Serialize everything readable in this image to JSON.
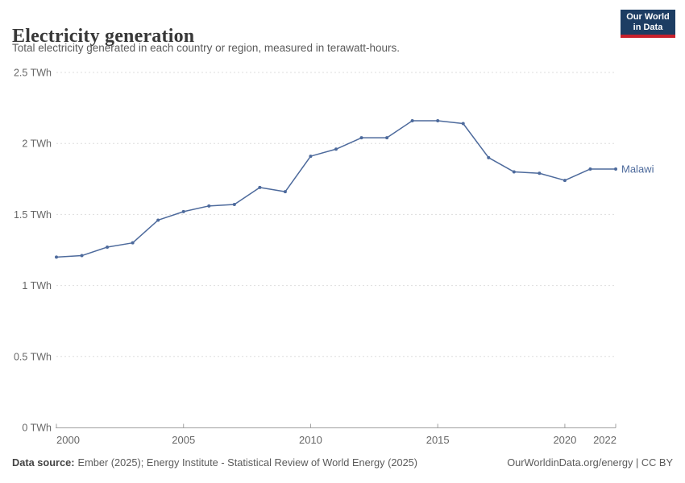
{
  "header": {
    "title": "Electricity generation",
    "subtitle": "Total electricity generated in each country or region, measured in terawatt-hours.",
    "logo": {
      "line1": "Our World",
      "line2": "in Data"
    }
  },
  "chart_data": {
    "type": "line",
    "title": "Electricity generation",
    "unit": "TWh",
    "x": [
      2000,
      2001,
      2002,
      2003,
      2004,
      2005,
      2006,
      2007,
      2008,
      2009,
      2010,
      2011,
      2012,
      2013,
      2014,
      2015,
      2016,
      2017,
      2018,
      2019,
      2020,
      2021,
      2022
    ],
    "series": [
      {
        "name": "Malawi",
        "values": [
          1.2,
          1.21,
          1.27,
          1.3,
          1.46,
          1.52,
          1.56,
          1.57,
          1.69,
          1.66,
          1.91,
          1.96,
          2.04,
          2.04,
          2.16,
          2.16,
          2.14,
          1.9,
          1.8,
          1.79,
          1.74,
          1.82,
          1.82
        ]
      }
    ],
    "ylim": [
      0,
      2.5
    ],
    "yticks": [
      0,
      0.5,
      1,
      1.5,
      2,
      2.5
    ],
    "ytick_labels": [
      "0 TWh",
      "0.5 TWh",
      "1 TWh",
      "1.5 TWh",
      "2 TWh",
      "2.5 TWh"
    ],
    "xticks": [
      2000,
      2005,
      2010,
      2015,
      2020,
      2022
    ],
    "grid": "horizontal-dashed",
    "legend_position": "end-of-line-label"
  },
  "footer": {
    "source_label": "Data source:",
    "source_text": "Ember (2025); Energy Institute - Statistical Review of World Energy (2025)",
    "credit": "OurWorldinData.org/energy | CC BY"
  },
  "colors": {
    "line": "#4d6a9c",
    "grid": "#dddddd",
    "axis": "#a0a0a0",
    "tick_text": "#666666",
    "logo_bg": "#1d3d63",
    "logo_bar": "#c8202c",
    "title_text": "#383838",
    "subtitle_text": "#5b5b5b"
  }
}
